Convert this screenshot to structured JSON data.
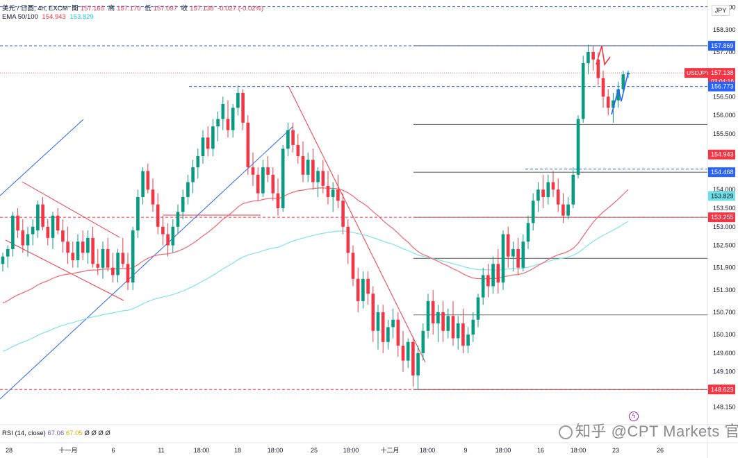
{
  "header": {
    "symbol": "美元 / 日圆, 4h, EXCM",
    "open_label": "開",
    "open": "157.165",
    "high_label": "高",
    "high": "157.170",
    "low_label": "低",
    "low": "157.097",
    "close_label": "收",
    "close": "157.138",
    "change": "-0.027 (-0.02%)",
    "ema_label": "EMA 50/100",
    "ema50": "154.943",
    "ema100": "153.829"
  },
  "currency_button": "JPY",
  "rsi": {
    "label": "RSI (14, close)",
    "value1": "67.06",
    "value2": "67.05",
    "extra": "Ø Ø Ø Ø"
  },
  "watermark": "知乎 @CPT Markets 官方",
  "colors": {
    "up": "#089981",
    "down": "#f23645",
    "ema50": "#f4646f",
    "ema100": "#7fe3ea",
    "channel": "#2962ff",
    "dashed_blue": "#2962ff",
    "gray_level": "#6b6b6b",
    "badge_blue": "#2962ff",
    "badge_red": "#f23645"
  },
  "chart_data": {
    "type": "candlestick",
    "symbol": "USDJPY",
    "timeframe": "4h",
    "ylim": [
      147.9,
      159.1
    ],
    "y_ticks": [
      "158.900",
      "158.300",
      "157.700",
      "157.100",
      "156.500",
      "156.000",
      "155.500",
      "154.900",
      "154.500",
      "154.000",
      "153.500",
      "153.000",
      "152.500",
      "151.900",
      "151.300",
      "150.700",
      "150.100",
      "149.600",
      "149.100",
      "148.623",
      "148.150"
    ],
    "x_ticks": [
      "28",
      "十一月",
      "6",
      "11",
      "18:00",
      "18",
      "18:00",
      "25",
      "18:00",
      "十二月",
      "18:00",
      "9",
      "18:00",
      "16",
      "18:00",
      "23",
      "26"
    ],
    "price_labels": [
      {
        "value": 157.869,
        "text": "157.869",
        "style": "blue"
      },
      {
        "value": 157.138,
        "text": "USDJPY",
        "text2": "157.138",
        "sub": "03:04:16",
        "style": "red"
      },
      {
        "value": 156.773,
        "text": "156.773",
        "style": "blue"
      },
      {
        "value": 154.943,
        "text": "154.943",
        "style": "red"
      },
      {
        "value": 154.468,
        "text": "154.468",
        "style": "blue"
      },
      {
        "value": 153.829,
        "text": "153.829",
        "style": "cyan"
      },
      {
        "value": 153.255,
        "text": "153.255",
        "style": "red"
      },
      {
        "value": 148.623,
        "text": "148.623",
        "style": "red"
      }
    ],
    "horizontal_levels_gray": [
      157.869,
      155.75,
      154.468,
      153.255,
      152.15,
      150.63,
      148.623
    ],
    "dashed_levels": [
      {
        "value": 158.92,
        "color": "blue"
      },
      {
        "value": 157.869,
        "color": "blue"
      },
      {
        "value": 156.773,
        "color": "blue"
      },
      {
        "value": 154.55,
        "color": "blue"
      },
      {
        "value": 153.255,
        "color": "red"
      },
      {
        "value": 148.623,
        "color": "red"
      }
    ],
    "last_price": 157.138,
    "candles": [
      [
        0,
        152.0,
        152.3,
        151.8,
        152.2
      ],
      [
        1,
        152.2,
        152.5,
        151.9,
        152.4
      ],
      [
        2,
        152.4,
        153.4,
        152.2,
        153.3
      ],
      [
        3,
        153.3,
        153.5,
        152.7,
        152.9
      ],
      [
        4,
        152.9,
        153.2,
        152.3,
        152.5
      ],
      [
        5,
        152.5,
        153.0,
        152.2,
        152.8
      ],
      [
        6,
        152.8,
        153.2,
        152.5,
        153.0
      ],
      [
        7,
        152.9,
        153.7,
        152.7,
        153.6
      ],
      [
        8,
        153.6,
        153.8,
        152.9,
        153.0
      ],
      [
        9,
        153.0,
        153.2,
        152.5,
        152.7
      ],
      [
        10,
        152.7,
        153.4,
        152.4,
        153.3
      ],
      [
        11,
        153.3,
        153.5,
        152.8,
        152.9
      ],
      [
        12,
        152.9,
        153.2,
        152.3,
        152.6
      ],
      [
        13,
        152.6,
        153.0,
        152.0,
        152.3
      ],
      [
        14,
        152.3,
        152.6,
        151.9,
        152.1
      ],
      [
        15,
        152.1,
        152.8,
        151.9,
        152.6
      ],
      [
        16,
        152.6,
        152.9,
        152.1,
        152.3
      ],
      [
        17,
        152.3,
        152.9,
        152.0,
        152.7
      ],
      [
        18,
        152.7,
        153.0,
        151.9,
        152.0
      ],
      [
        19,
        152.0,
        152.4,
        151.7,
        151.9
      ],
      [
        20,
        151.9,
        152.6,
        151.6,
        152.4
      ],
      [
        21,
        152.4,
        152.7,
        151.8,
        151.9
      ],
      [
        22,
        151.9,
        152.3,
        151.5,
        151.7
      ],
      [
        23,
        151.7,
        152.4,
        151.5,
        152.3
      ],
      [
        24,
        152.3,
        152.7,
        151.9,
        152.0
      ],
      [
        25,
        152.0,
        152.3,
        151.3,
        151.5
      ],
      [
        26,
        151.5,
        153.0,
        151.3,
        152.9
      ],
      [
        27,
        152.9,
        154.0,
        152.7,
        153.8
      ],
      [
        28,
        153.8,
        154.6,
        153.6,
        154.5
      ],
      [
        29,
        154.5,
        154.7,
        153.9,
        154.0
      ],
      [
        30,
        154.0,
        154.3,
        153.4,
        153.6
      ],
      [
        31,
        153.6,
        153.9,
        152.8,
        153.0
      ],
      [
        32,
        153.0,
        153.3,
        152.5,
        152.8
      ],
      [
        33,
        152.8,
        153.1,
        152.2,
        152.5
      ],
      [
        34,
        152.5,
        153.2,
        152.3,
        153.0
      ],
      [
        35,
        153.0,
        153.6,
        152.8,
        153.4
      ],
      [
        36,
        153.4,
        154.0,
        153.2,
        153.8
      ],
      [
        37,
        153.8,
        154.4,
        153.6,
        154.2
      ],
      [
        38,
        154.2,
        154.8,
        153.9,
        154.6
      ],
      [
        39,
        154.6,
        155.1,
        154.3,
        154.9
      ],
      [
        40,
        154.9,
        155.6,
        154.7,
        155.4
      ],
      [
        41,
        155.4,
        155.7,
        154.9,
        155.1
      ],
      [
        42,
        155.1,
        155.9,
        154.9,
        155.7
      ],
      [
        43,
        155.7,
        156.1,
        155.3,
        155.9
      ],
      [
        44,
        155.9,
        156.5,
        155.6,
        156.3
      ],
      [
        45,
        155.9,
        156.4,
        155.4,
        155.6
      ],
      [
        46,
        155.6,
        156.3,
        155.4,
        156.2
      ],
      [
        47,
        156.2,
        156.8,
        156.0,
        156.6
      ],
      [
        48,
        156.6,
        156.7,
        155.6,
        155.8
      ],
      [
        49,
        155.8,
        156.0,
        154.4,
        154.6
      ],
      [
        50,
        154.6,
        155.0,
        154.1,
        154.4
      ],
      [
        51,
        154.4,
        154.6,
        153.7,
        153.9
      ],
      [
        52,
        153.9,
        154.8,
        153.8,
        154.6
      ],
      [
        53,
        154.6,
        154.9,
        154.2,
        154.4
      ],
      [
        54,
        154.4,
        154.6,
        153.7,
        153.9
      ],
      [
        55,
        153.9,
        154.3,
        153.3,
        153.5
      ],
      [
        56,
        153.5,
        155.2,
        153.4,
        155.1
      ],
      [
        57,
        155.1,
        155.8,
        154.9,
        155.6
      ],
      [
        58,
        155.6,
        155.8,
        155.0,
        155.2
      ],
      [
        59,
        155.2,
        155.5,
        154.7,
        154.9
      ],
      [
        60,
        154.9,
        155.3,
        154.2,
        154.4
      ],
      [
        61,
        154.4,
        155.0,
        154.2,
        154.8
      ],
      [
        62,
        154.8,
        155.1,
        154.0,
        154.2
      ],
      [
        63,
        154.2,
        154.6,
        153.8,
        154.5
      ],
      [
        64,
        154.5,
        154.8,
        153.9,
        154.1
      ],
      [
        65,
        154.1,
        154.5,
        153.6,
        153.8
      ],
      [
        66,
        153.8,
        154.2,
        153.4,
        154.0
      ],
      [
        67,
        154.0,
        154.4,
        153.5,
        153.7
      ],
      [
        68,
        153.7,
        153.9,
        152.8,
        153.0
      ],
      [
        69,
        153.0,
        153.2,
        152.0,
        152.3
      ],
      [
        70,
        152.3,
        152.5,
        151.4,
        151.6
      ],
      [
        71,
        151.6,
        151.9,
        150.7,
        151.0
      ],
      [
        72,
        151.0,
        151.8,
        150.8,
        151.6
      ],
      [
        73,
        151.6,
        151.8,
        150.9,
        151.2
      ],
      [
        74,
        151.2,
        151.4,
        149.9,
        150.2
      ],
      [
        75,
        150.2,
        150.9,
        149.7,
        150.7
      ],
      [
        76,
        150.7,
        150.9,
        149.6,
        149.9
      ],
      [
        77,
        149.9,
        150.5,
        149.7,
        150.3
      ],
      [
        78,
        150.3,
        150.8,
        150.0,
        150.5
      ],
      [
        79,
        150.5,
        150.7,
        149.5,
        149.8
      ],
      [
        80,
        149.8,
        150.2,
        149.1,
        149.4
      ],
      [
        81,
        149.4,
        150.0,
        149.2,
        149.9
      ],
      [
        82,
        149.9,
        150.0,
        148.7,
        149.0
      ],
      [
        83,
        149.0,
        149.8,
        148.623,
        149.6
      ],
      [
        84,
        149.6,
        150.4,
        149.4,
        150.2
      ],
      [
        85,
        150.2,
        151.2,
        150.0,
        151.0
      ],
      [
        86,
        151.0,
        151.3,
        150.1,
        150.4
      ],
      [
        87,
        150.4,
        150.9,
        149.9,
        150.7
      ],
      [
        88,
        150.7,
        151.0,
        149.9,
        150.2
      ],
      [
        89,
        150.2,
        150.8,
        150.0,
        150.6
      ],
      [
        90,
        150.6,
        151.0,
        149.8,
        150.0
      ],
      [
        91,
        150.0,
        150.6,
        149.7,
        150.4
      ],
      [
        92,
        150.4,
        150.8,
        149.6,
        149.8
      ],
      [
        93,
        149.8,
        150.3,
        149.6,
        150.1
      ],
      [
        94,
        150.1,
        150.7,
        149.9,
        150.5
      ],
      [
        95,
        150.5,
        151.2,
        150.3,
        151.1
      ],
      [
        96,
        151.1,
        151.9,
        150.9,
        151.7
      ],
      [
        97,
        151.7,
        152.0,
        151.1,
        151.4
      ],
      [
        98,
        151.4,
        152.2,
        151.2,
        152.0
      ],
      [
        99,
        152.0,
        152.4,
        151.2,
        151.5
      ],
      [
        100,
        151.5,
        152.9,
        151.3,
        152.8
      ],
      [
        101,
        152.8,
        153.0,
        151.9,
        152.2
      ],
      [
        102,
        152.2,
        152.6,
        151.8,
        152.4
      ],
      [
        103,
        152.4,
        152.7,
        151.7,
        151.9
      ],
      [
        104,
        151.9,
        152.8,
        151.8,
        152.6
      ],
      [
        105,
        152.6,
        153.3,
        152.4,
        153.1
      ],
      [
        106,
        153.1,
        153.9,
        152.9,
        153.7
      ],
      [
        107,
        153.7,
        154.2,
        153.4,
        154.0
      ],
      [
        108,
        154.0,
        154.4,
        153.5,
        153.8
      ],
      [
        109,
        153.8,
        154.4,
        153.6,
        154.2
      ],
      [
        110,
        154.2,
        154.5,
        153.8,
        154.0
      ],
      [
        111,
        154.0,
        154.3,
        153.4,
        153.6
      ],
      [
        112,
        153.6,
        153.9,
        153.1,
        153.3
      ],
      [
        113,
        153.3,
        153.8,
        153.2,
        153.6
      ],
      [
        114,
        153.6,
        154.6,
        153.5,
        154.4
      ],
      [
        115,
        154.4,
        156.0,
        154.3,
        155.9
      ],
      [
        116,
        155.9,
        157.6,
        155.8,
        157.4
      ],
      [
        117,
        157.4,
        157.9,
        157.1,
        157.7
      ],
      [
        118,
        157.7,
        157.869,
        157.2,
        157.5
      ],
      [
        119,
        157.5,
        157.7,
        156.8,
        157.0
      ],
      [
        120,
        157.0,
        157.2,
        156.2,
        156.5
      ],
      [
        121,
        156.5,
        156.7,
        156.0,
        156.2
      ],
      [
        122,
        156.2,
        156.6,
        155.8,
        156.4
      ],
      [
        123,
        156.4,
        156.9,
        156.2,
        156.7
      ],
      [
        124,
        156.7,
        157.2,
        156.6,
        157.1
      ],
      [
        125,
        157.1,
        157.2,
        157.0,
        157.138
      ]
    ]
  }
}
